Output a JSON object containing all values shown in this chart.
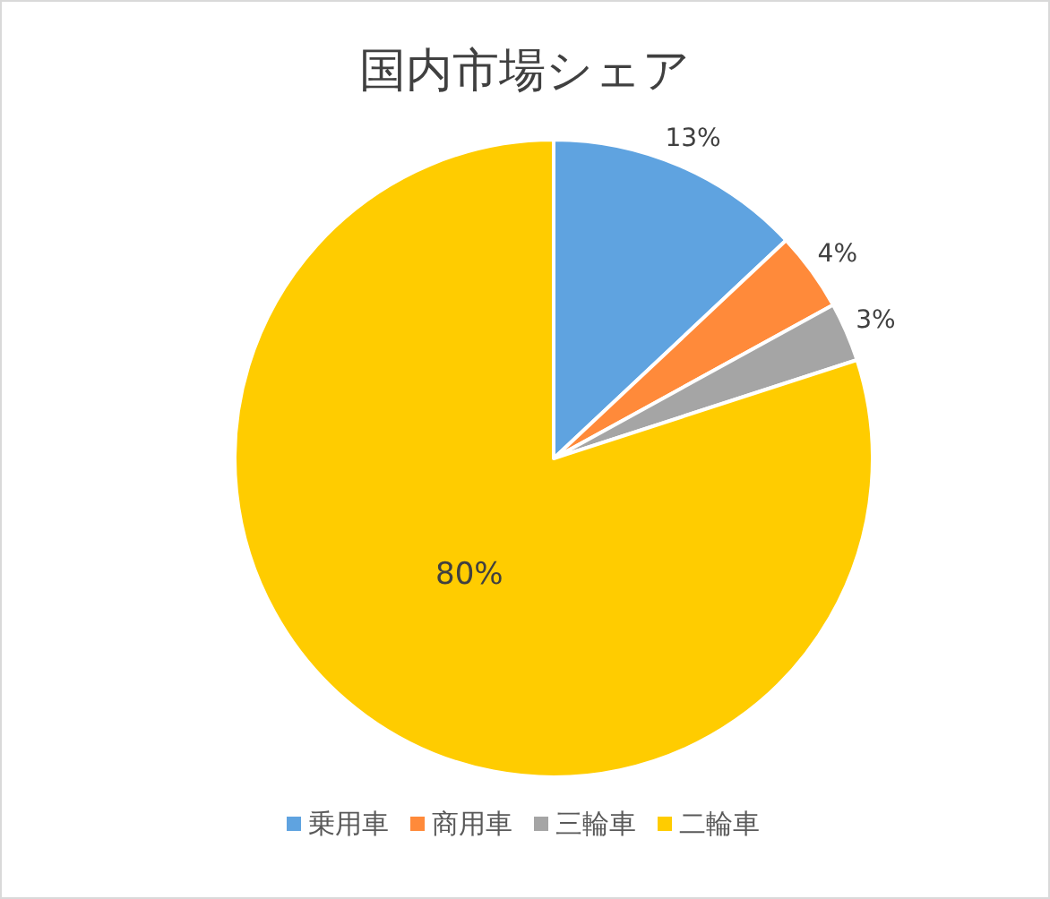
{
  "chart_data": {
    "type": "pie",
    "title": "国内市場シェア",
    "categories": [
      "乗用車",
      "商用車",
      "三輪車",
      "二輪車"
    ],
    "values": [
      13,
      4,
      3,
      80
    ],
    "colors": [
      "#5fa3e0",
      "#ff8a3a",
      "#a5a5a5",
      "#ffcc00"
    ],
    "value_labels": [
      "13%",
      "4%",
      "3%",
      "80%"
    ],
    "legend": "bottom"
  }
}
